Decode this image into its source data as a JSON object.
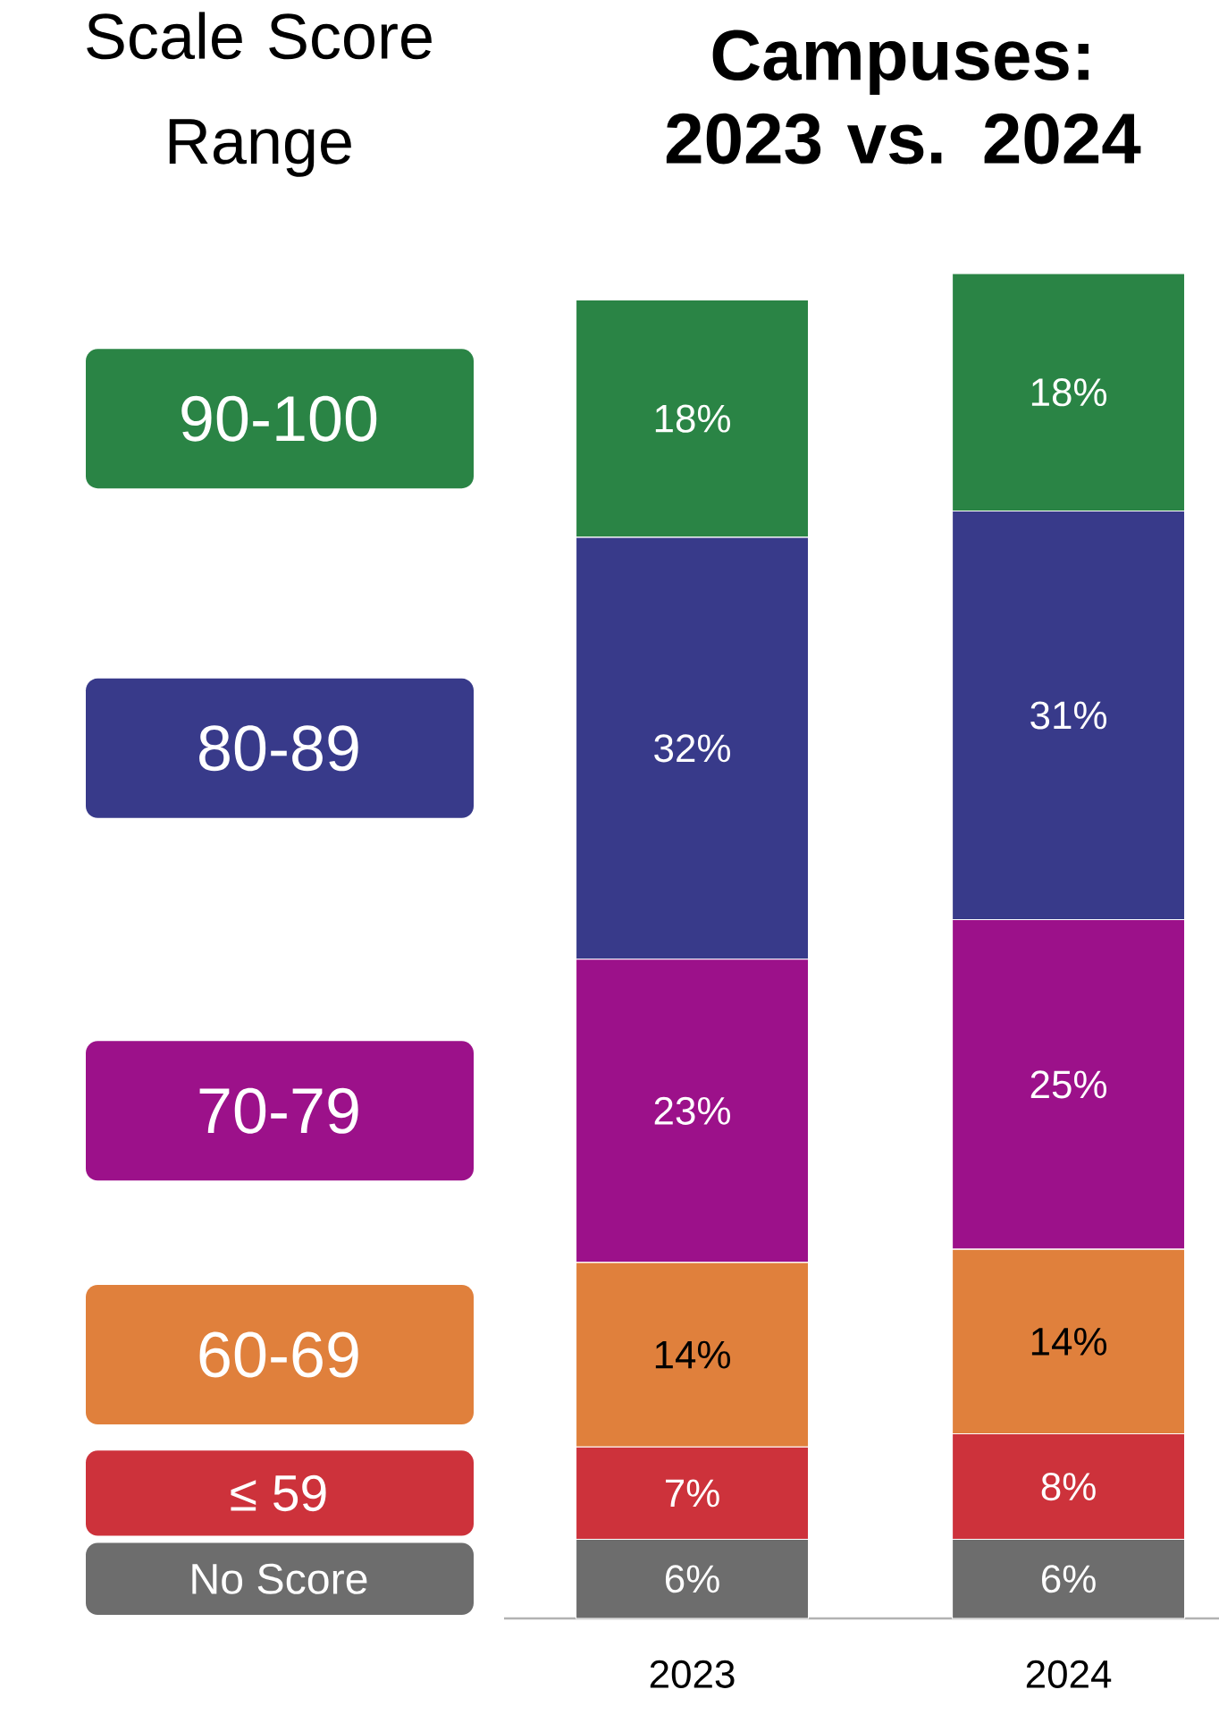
{
  "chart_data": {
    "type": "bar",
    "title": "Campuses: 2023 vs. 2024",
    "legend_title": "Scale Score Range",
    "categories": [
      "2023",
      "2024"
    ],
    "stacked": true,
    "legend": "left",
    "series": [
      {
        "name": "No Score",
        "color": "#6d6d6d",
        "values": [
          6,
          6
        ],
        "value_labels": [
          "6%",
          "6%"
        ]
      },
      {
        "name": "≤ 59",
        "color": "#cd323b",
        "values": [
          7,
          8
        ],
        "value_labels": [
          "7%",
          "8%"
        ]
      },
      {
        "name": "60-69",
        "color": "#e0803c",
        "values": [
          14,
          14
        ],
        "value_labels": [
          "14%",
          "14%"
        ]
      },
      {
        "name": "70-79",
        "color": "#9c118a",
        "values": [
          23,
          25
        ],
        "value_labels": [
          "23%",
          "25%"
        ]
      },
      {
        "name": "80-89",
        "color": "#383a8a",
        "values": [
          32,
          31
        ],
        "value_labels": [
          "32%",
          "31%"
        ]
      },
      {
        "name": "90-100",
        "color": "#2a8445",
        "values": [
          18,
          18
        ],
        "value_labels": [
          "18%",
          "18%"
        ]
      }
    ]
  }
}
